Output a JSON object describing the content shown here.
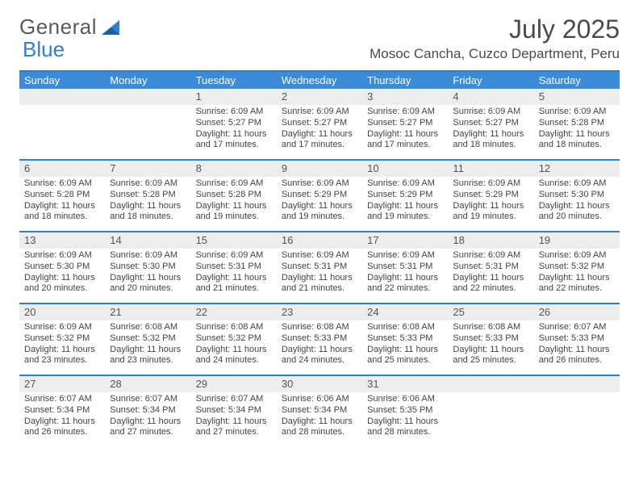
{
  "brand": {
    "part1": "General",
    "part2": "Blue"
  },
  "title": "July 2025",
  "location": "Mosoc Cancha, Cuzco Department, Peru",
  "colors": {
    "accent": "#3b8bd8",
    "border": "#2f7fd1",
    "daybar": "#eceded",
    "text": "#3a3a3a"
  },
  "dow": [
    "Sunday",
    "Monday",
    "Tuesday",
    "Wednesday",
    "Thursday",
    "Friday",
    "Saturday"
  ],
  "weeks": [
    [
      null,
      null,
      {
        "n": "1",
        "sr": "6:09 AM",
        "ss": "5:27 PM",
        "dl": "11 hours and 17 minutes."
      },
      {
        "n": "2",
        "sr": "6:09 AM",
        "ss": "5:27 PM",
        "dl": "11 hours and 17 minutes."
      },
      {
        "n": "3",
        "sr": "6:09 AM",
        "ss": "5:27 PM",
        "dl": "11 hours and 17 minutes."
      },
      {
        "n": "4",
        "sr": "6:09 AM",
        "ss": "5:27 PM",
        "dl": "11 hours and 18 minutes."
      },
      {
        "n": "5",
        "sr": "6:09 AM",
        "ss": "5:28 PM",
        "dl": "11 hours and 18 minutes."
      }
    ],
    [
      {
        "n": "6",
        "sr": "6:09 AM",
        "ss": "5:28 PM",
        "dl": "11 hours and 18 minutes."
      },
      {
        "n": "7",
        "sr": "6:09 AM",
        "ss": "5:28 PM",
        "dl": "11 hours and 18 minutes."
      },
      {
        "n": "8",
        "sr": "6:09 AM",
        "ss": "5:28 PM",
        "dl": "11 hours and 19 minutes."
      },
      {
        "n": "9",
        "sr": "6:09 AM",
        "ss": "5:29 PM",
        "dl": "11 hours and 19 minutes."
      },
      {
        "n": "10",
        "sr": "6:09 AM",
        "ss": "5:29 PM",
        "dl": "11 hours and 19 minutes."
      },
      {
        "n": "11",
        "sr": "6:09 AM",
        "ss": "5:29 PM",
        "dl": "11 hours and 19 minutes."
      },
      {
        "n": "12",
        "sr": "6:09 AM",
        "ss": "5:30 PM",
        "dl": "11 hours and 20 minutes."
      }
    ],
    [
      {
        "n": "13",
        "sr": "6:09 AM",
        "ss": "5:30 PM",
        "dl": "11 hours and 20 minutes."
      },
      {
        "n": "14",
        "sr": "6:09 AM",
        "ss": "5:30 PM",
        "dl": "11 hours and 20 minutes."
      },
      {
        "n": "15",
        "sr": "6:09 AM",
        "ss": "5:31 PM",
        "dl": "11 hours and 21 minutes."
      },
      {
        "n": "16",
        "sr": "6:09 AM",
        "ss": "5:31 PM",
        "dl": "11 hours and 21 minutes."
      },
      {
        "n": "17",
        "sr": "6:09 AM",
        "ss": "5:31 PM",
        "dl": "11 hours and 22 minutes."
      },
      {
        "n": "18",
        "sr": "6:09 AM",
        "ss": "5:31 PM",
        "dl": "11 hours and 22 minutes."
      },
      {
        "n": "19",
        "sr": "6:09 AM",
        "ss": "5:32 PM",
        "dl": "11 hours and 22 minutes."
      }
    ],
    [
      {
        "n": "20",
        "sr": "6:09 AM",
        "ss": "5:32 PM",
        "dl": "11 hours and 23 minutes."
      },
      {
        "n": "21",
        "sr": "6:08 AM",
        "ss": "5:32 PM",
        "dl": "11 hours and 23 minutes."
      },
      {
        "n": "22",
        "sr": "6:08 AM",
        "ss": "5:32 PM",
        "dl": "11 hours and 24 minutes."
      },
      {
        "n": "23",
        "sr": "6:08 AM",
        "ss": "5:33 PM",
        "dl": "11 hours and 24 minutes."
      },
      {
        "n": "24",
        "sr": "6:08 AM",
        "ss": "5:33 PM",
        "dl": "11 hours and 25 minutes."
      },
      {
        "n": "25",
        "sr": "6:08 AM",
        "ss": "5:33 PM",
        "dl": "11 hours and 25 minutes."
      },
      {
        "n": "26",
        "sr": "6:07 AM",
        "ss": "5:33 PM",
        "dl": "11 hours and 26 minutes."
      }
    ],
    [
      {
        "n": "27",
        "sr": "6:07 AM",
        "ss": "5:34 PM",
        "dl": "11 hours and 26 minutes."
      },
      {
        "n": "28",
        "sr": "6:07 AM",
        "ss": "5:34 PM",
        "dl": "11 hours and 27 minutes."
      },
      {
        "n": "29",
        "sr": "6:07 AM",
        "ss": "5:34 PM",
        "dl": "11 hours and 27 minutes."
      },
      {
        "n": "30",
        "sr": "6:06 AM",
        "ss": "5:34 PM",
        "dl": "11 hours and 28 minutes."
      },
      {
        "n": "31",
        "sr": "6:06 AM",
        "ss": "5:35 PM",
        "dl": "11 hours and 28 minutes."
      },
      null,
      null
    ]
  ],
  "labels": {
    "sunrise": "Sunrise:",
    "sunset": "Sunset:",
    "daylight": "Daylight:"
  }
}
